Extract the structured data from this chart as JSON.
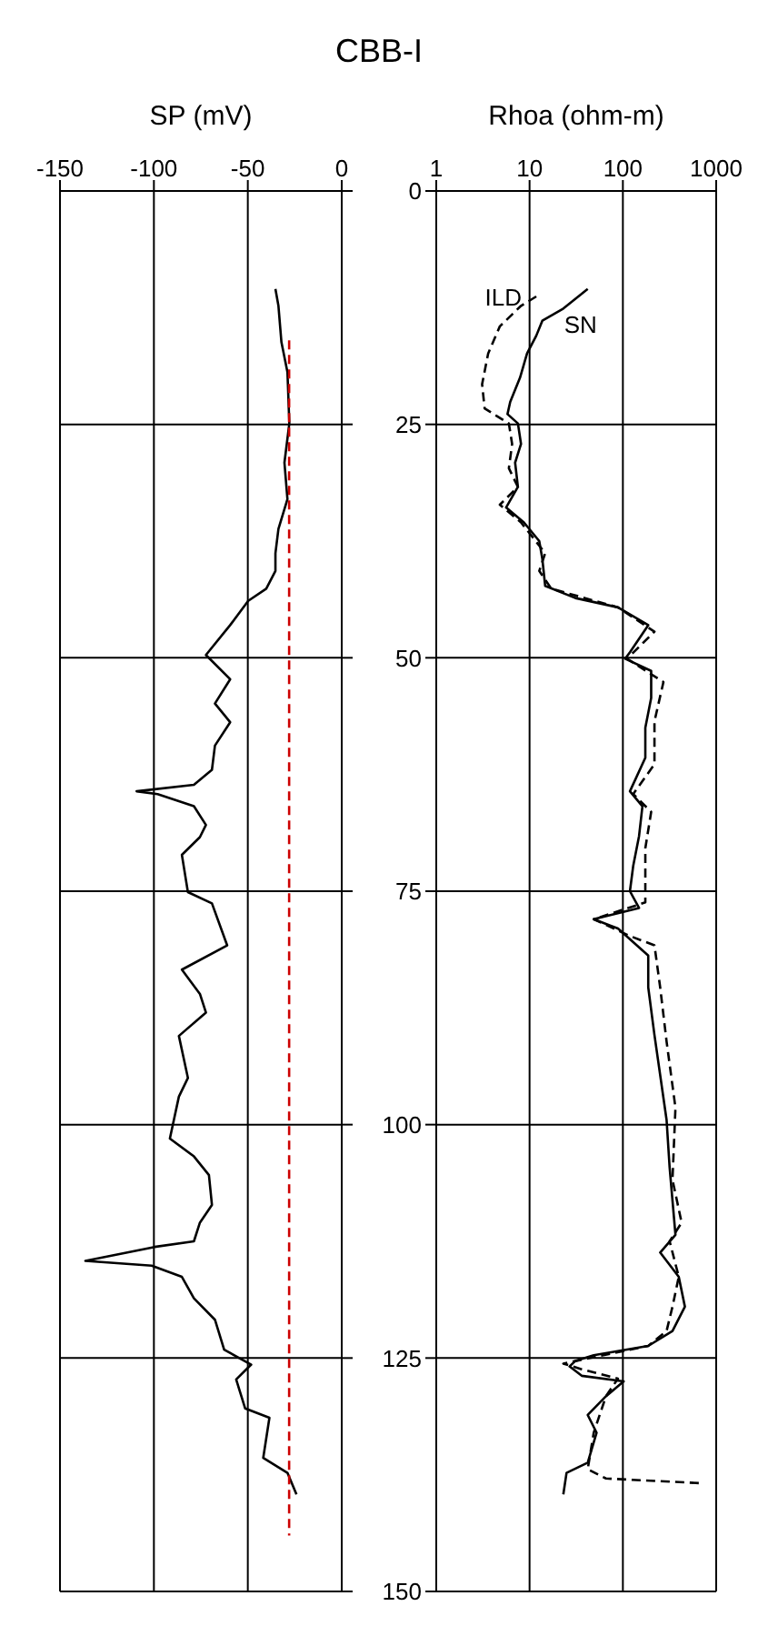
{
  "chart_data": [
    {
      "type": "line",
      "title": "CBB-I",
      "xlabel": "SP (mV)",
      "xlim": [
        -150,
        0
      ],
      "xticks": [
        -150,
        -100,
        -50,
        0
      ],
      "ylim": [
        150,
        0
      ],
      "yticks": [
        {
          "value": 0,
          "label": null
        },
        {
          "value": 25,
          "label": null
        },
        {
          "value": 50,
          "label": null
        },
        {
          "value": 75,
          "label": null
        },
        {
          "value": 100,
          "label": null
        },
        {
          "value": 125,
          "label": null
        },
        {
          "value": 150,
          "label": null
        }
      ],
      "tick_labels": "x",
      "grid": true,
      "series": [
        {
          "color": "#000000",
          "x": [
            -35.3,
            -33.7,
            -32.1,
            -28.9,
            -27.9,
            -30.5,
            -28.9,
            -33.7,
            -35.3,
            -35.3,
            -40.2,
            -49.8,
            -59.4,
            -72.3,
            -59.4,
            -67.5,
            -59.4,
            -67.5,
            -69.1,
            -78.7,
            -109.2,
            -98,
            -78.7,
            -72.3,
            -75.5,
            -85.1,
            -81.9,
            -69.1,
            -61,
            -85.1,
            -75.5,
            -72.3,
            -86.7,
            -81.9,
            -86.7,
            -91.5,
            -78.7,
            -70.7,
            -69.1,
            -75.5,
            -78.7,
            -99.6,
            -136.5,
            -101.2,
            -85.1,
            -78.7,
            -67.5,
            -62.6,
            -48.2,
            -56.2,
            -51.4,
            -38.5,
            -41.8,
            -28.9,
            -24.1
          ],
          "values": [
            10.5,
            12.3,
            16.2,
            19.4,
            24.9,
            29.1,
            33,
            36.2,
            38.8,
            40.7,
            42.6,
            43.9,
            46.5,
            49.7,
            52.3,
            54.9,
            56.9,
            59.4,
            62,
            63.6,
            64.3,
            64.6,
            65.9,
            67.9,
            69.2,
            71.1,
            75.1,
            76.3,
            80.8,
            83.4,
            86,
            88,
            90.5,
            95,
            97,
            101.5,
            103.4,
            105.4,
            108.6,
            110.5,
            112.5,
            113.1,
            114.6,
            115.1,
            116.3,
            118.6,
            120.9,
            124.1,
            125.7,
            127.3,
            130.4,
            131.4,
            135.7,
            137.3,
            139.6
          ]
        },
        {
          "color": "#cc0000",
          "line_style": "dashed",
          "x": [
            -28,
            -28
          ],
          "values": [
            16,
            144
          ]
        }
      ]
    },
    {
      "type": "line",
      "xlabel": "Rhoa (ohm-m)",
      "log": "x",
      "xlim": [
        1,
        1000
      ],
      "xticks": [
        1,
        10,
        100,
        1000
      ],
      "ylim": [
        150,
        0
      ],
      "yticks": [
        0,
        25,
        50,
        75,
        100,
        125,
        150
      ],
      "grid": true,
      "series": [
        {
          "name": "ILD",
          "color": "#000000",
          "line_style": "dashed",
          "x": [
            11.8,
            8.1,
            4.8,
            3.6,
            3.1,
            3.3,
            6,
            6.5,
            6,
            7.5,
            4.8,
            8.1,
            14.7,
            12.7,
            17.1,
            88.6,
            218,
            111,
            272,
            218,
            218,
            129,
            201,
            174,
            174,
            174,
            48.7,
            119,
            218,
            251,
            294,
            366,
            340,
            426,
            317,
            397,
            340,
            294,
            187,
            23,
            36.2,
            88.6,
            65.8,
            48.7,
            42,
            65.8,
            667
          ],
          "values": [
            11.3,
            12.3,
            14.5,
            17.4,
            20.7,
            23.3,
            24.9,
            27.1,
            29.7,
            31.7,
            33.6,
            35.5,
            38.8,
            40.7,
            42.6,
            44.6,
            47.2,
            50.1,
            52.6,
            56.8,
            61.4,
            64.6,
            66.5,
            70.4,
            72.3,
            76.2,
            78,
            79.8,
            80.8,
            85.3,
            91.1,
            98.2,
            105.9,
            110.5,
            112.5,
            116.3,
            119.5,
            122.1,
            123.7,
            125.6,
            126.2,
            127.2,
            129.1,
            133,
            136.9,
            137.9,
            138.4
          ]
        },
        {
          "name": "SN",
          "color": "#000000",
          "x": [
            42,
            23,
            13.7,
            11.8,
            9.4,
            7.9,
            6.2,
            5.8,
            7.5,
            8.1,
            7,
            7.5,
            5.6,
            8.7,
            12.7,
            13.7,
            14.7,
            31,
            88.6,
            187,
            119,
            106,
            201,
            201,
            174,
            174,
            119,
            162,
            149,
            129,
            119,
            149,
            48.7,
            88.6,
            187,
            187,
            218,
            294,
            317,
            366,
            251,
            397,
            462,
            340,
            187,
            48.7,
            31,
            26.8,
            36.2,
            102,
            65.8,
            42,
            52.3,
            42,
            24.9,
            23
          ],
          "values": [
            10.5,
            12.6,
            13.9,
            15.5,
            17.4,
            20,
            22.6,
            23.9,
            24.9,
            27.1,
            29.1,
            31.7,
            33.9,
            35.5,
            37.5,
            39.4,
            42.3,
            43.6,
            44.6,
            46.5,
            49.4,
            50.1,
            51.4,
            54.3,
            57.5,
            60.7,
            64.3,
            65.9,
            69.1,
            72.3,
            75,
            76.8,
            78,
            79,
            81.9,
            85.3,
            90.4,
            99.5,
            104.6,
            111.8,
            113.7,
            116.3,
            119.5,
            122.1,
            123.7,
            124.7,
            125.3,
            125.9,
            126.9,
            127.5,
            129.1,
            131.1,
            133,
            136.2,
            137.3,
            139.6
          ]
        }
      ]
    }
  ]
}
